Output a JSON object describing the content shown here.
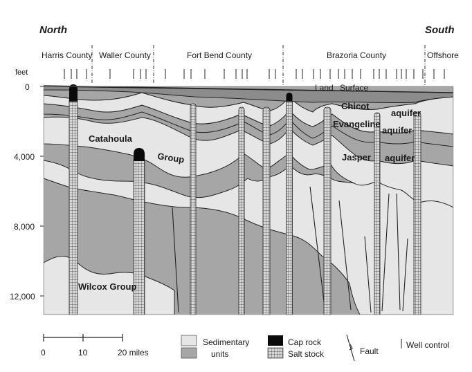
{
  "directions": {
    "left": "North",
    "right": "South"
  },
  "counties": [
    "Harris County",
    "Waller County",
    "Fort Bend County",
    "Brazoria County",
    "Offshore"
  ],
  "depth_axis": {
    "unit": "feet",
    "ticks": [
      "0",
      "4,000",
      "8,000",
      "12,000"
    ]
  },
  "land_surface": [
    "Land",
    "Surface"
  ],
  "formations": {
    "chicot": "Chicot",
    "evangeline": "Evangeline",
    "jasper": "Jasper",
    "aquifer": "aquifer",
    "catahoula": "Catahoula",
    "group": "Group",
    "wilcox": "Wilcox Group"
  },
  "scale_bar": {
    "ticks": [
      "0",
      "10",
      "20 miles"
    ]
  },
  "legend": {
    "sedimentary": [
      "Sedimentary",
      "units"
    ],
    "cap_rock": "Cap rock",
    "salt_stock": "Salt stock",
    "fault": "Fault",
    "well_control": "Well control"
  },
  "colors": {
    "light_unit": "#e6e6e6",
    "dark_unit": "#a6a6a6",
    "cap_rock": "#0a0a0a",
    "salt_stock": "#d6d6d6",
    "line": "#222222"
  }
}
